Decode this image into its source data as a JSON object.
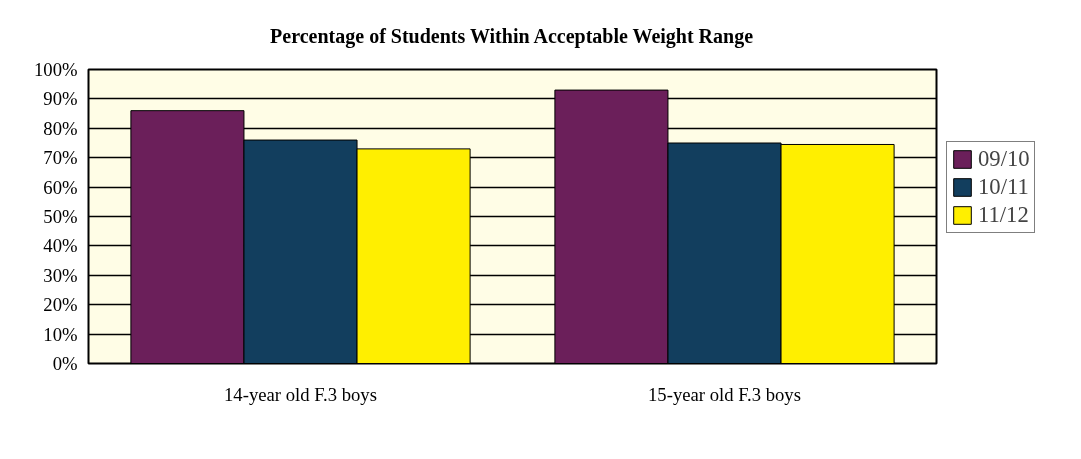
{
  "chart_data": {
    "type": "bar",
    "title": "Percentage of Students Within Acceptable Weight Range",
    "categories": [
      "14-year old F.3 boys",
      "15-year old F.3 boys"
    ],
    "series": [
      {
        "name": "09/10",
        "color": "#6b1f5a",
        "values": [
          86,
          93
        ]
      },
      {
        "name": "10/11",
        "color": "#123e5e",
        "values": [
          76,
          75
        ]
      },
      {
        "name": "11/12",
        "color": "#ffef00",
        "values": [
          73,
          74.5
        ]
      }
    ],
    "ylim": [
      0,
      100
    ],
    "yticks": [
      {
        "value": 0,
        "label": "0%"
      },
      {
        "value": 10,
        "label": "10%"
      },
      {
        "value": 20,
        "label": "20%"
      },
      {
        "value": 30,
        "label": "30%"
      },
      {
        "value": 40,
        "label": "40%"
      },
      {
        "value": 50,
        "label": "50%"
      },
      {
        "value": 60,
        "label": "60%"
      },
      {
        "value": 70,
        "label": "70%"
      },
      {
        "value": 80,
        "label": "80%"
      },
      {
        "value": 90,
        "label": "90%"
      },
      {
        "value": 100,
        "label": "100%"
      }
    ],
    "grid": "y",
    "legend": "right"
  }
}
